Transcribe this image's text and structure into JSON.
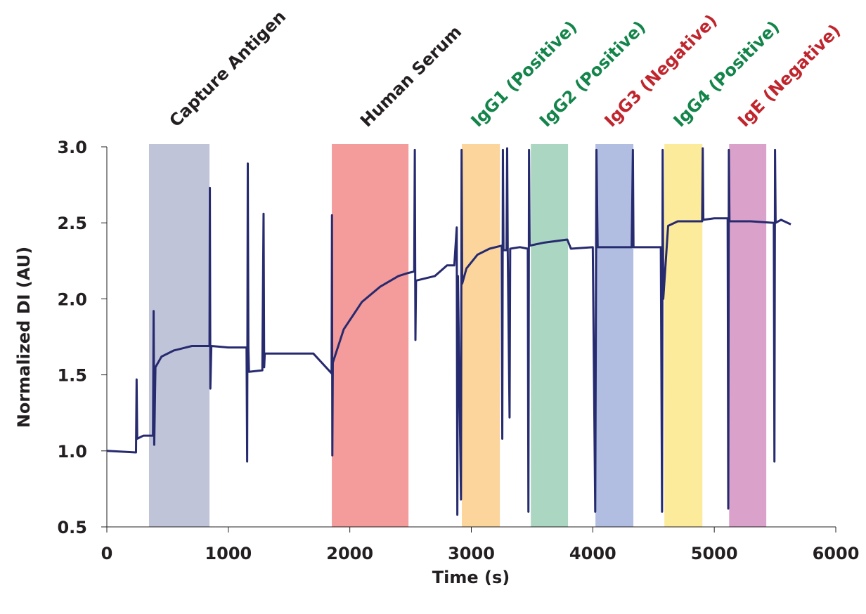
{
  "chart_data": {
    "type": "line",
    "xlabel": "Time (s)",
    "ylabel": "Normalized DI (AU)",
    "xlim": [
      0,
      6000
    ],
    "ylim": [
      0.5,
      3.0
    ],
    "xticks": [
      0,
      1000,
      2000,
      3000,
      4000,
      5000,
      6000
    ],
    "yticks": [
      0.5,
      {
        "value": 1.0,
        "label": "1.0"
      },
      1.5,
      {
        "value": 2.0,
        "label": "2.0"
      },
      2.5,
      {
        "value": 3.0,
        "label": "3.0"
      }
    ],
    "bands": [
      {
        "label": "Capture Antigen",
        "start": 347,
        "end": 845,
        "color": "#c0c4d9",
        "label_color": "#231f20"
      },
      {
        "label": "Human Serum",
        "start": 1852,
        "end": 2483,
        "color": "#f49b9b",
        "label_color": "#231f20"
      },
      {
        "label": "IgG1 (Positive)",
        "start": 2922,
        "end": 3235,
        "color": "#fbd59c",
        "label_color": "#13844a"
      },
      {
        "label": "IgG2 (Positive)",
        "start": 3490,
        "end": 3796,
        "color": "#abd6c1",
        "label_color": "#13844a"
      },
      {
        "label": "IgG3 (Negative)",
        "start": 4022,
        "end": 4334,
        "color": "#b1bee2",
        "label_color": "#c0252d"
      },
      {
        "label": "IgG4 (Positive)",
        "start": 4589,
        "end": 4902,
        "color": "#fdeb9c",
        "label_color": "#13844a"
      },
      {
        "label": "IgE (Negative)",
        "start": 5122,
        "end": 5428,
        "color": "#daa2ca",
        "label_color": "#c0252d"
      }
    ],
    "series": [
      {
        "color": "#262a6e",
        "x": [
          0,
          240,
          245,
          250,
          300,
          380,
          385,
          390,
          400,
          450,
          550,
          700,
          845,
          848,
          852,
          860,
          1000,
          1150,
          1155,
          1160,
          1165,
          1170,
          1280,
          1290,
          1295,
          1300,
          1500,
          1700,
          1850,
          1853,
          1856,
          1860,
          1950,
          2100,
          2250,
          2400,
          2480,
          2530,
          2535,
          2540,
          2545,
          2700,
          2800,
          2860,
          2880,
          2885,
          2890,
          2915,
          2920,
          2925,
          2960,
          3050,
          3150,
          3250,
          3255,
          3260,
          3265,
          3290,
          3295,
          3300,
          3315,
          3320,
          3400,
          3465,
          3470,
          3475,
          3480,
          3600,
          3790,
          3820,
          4000,
          4020,
          4030,
          4040,
          4200,
          4320,
          4330,
          4335,
          4560,
          4570,
          4575,
          4580,
          4620,
          4700,
          4900,
          4905,
          4910,
          5000,
          5110,
          5115,
          5120,
          5125,
          5300,
          5490,
          5495,
          5500,
          5505,
          5550,
          5630
        ],
        "values": [
          1.0,
          0.99,
          1.47,
          1.08,
          1.1,
          1.1,
          1.92,
          1.04,
          1.55,
          1.62,
          1.66,
          1.69,
          1.69,
          2.73,
          1.41,
          1.69,
          1.68,
          1.68,
          0.93,
          2.89,
          1.68,
          1.52,
          1.53,
          2.56,
          1.55,
          1.64,
          1.64,
          1.64,
          1.51,
          2.55,
          0.97,
          1.58,
          1.8,
          1.98,
          2.08,
          2.15,
          2.17,
          2.18,
          2.98,
          1.73,
          2.12,
          2.15,
          2.22,
          2.22,
          2.47,
          0.58,
          2.15,
          0.68,
          2.98,
          2.1,
          2.2,
          2.29,
          2.33,
          2.35,
          1.08,
          2.98,
          2.32,
          2.32,
          2.99,
          2.3,
          1.22,
          2.33,
          2.34,
          2.33,
          0.6,
          2.98,
          2.35,
          2.37,
          2.39,
          2.33,
          2.34,
          0.6,
          2.98,
          2.34,
          2.34,
          2.34,
          2.98,
          2.34,
          2.34,
          0.6,
          2.98,
          2.0,
          2.48,
          2.51,
          2.51,
          2.99,
          2.52,
          2.53,
          2.53,
          0.62,
          2.98,
          2.51,
          2.51,
          2.5,
          0.93,
          2.98,
          2.5,
          2.52,
          2.49
        ]
      }
    ]
  }
}
